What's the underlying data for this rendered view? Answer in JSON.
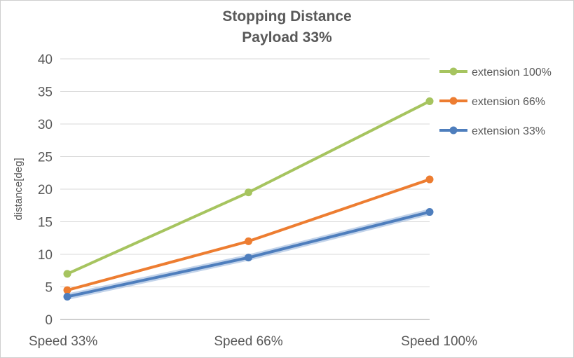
{
  "chart_data": {
    "type": "line",
    "title": "Stopping Distance",
    "subtitle": "Payload 33%",
    "categories": [
      "Speed 33%",
      "Speed 66%",
      "Speed 100%"
    ],
    "series": [
      {
        "name": "extension 100%",
        "values": [
          7,
          19.5,
          33.5
        ],
        "color": "#A6C45F"
      },
      {
        "name": "extension 66%",
        "values": [
          4.5,
          12,
          21.5
        ],
        "color": "#ED7D31"
      },
      {
        "name": "extension 33%",
        "values": [
          3.5,
          9.5,
          16.5
        ],
        "color": "#4E7EBD",
        "halo_color": "#8FAFD9"
      }
    ],
    "ylabel": "distance[deg]",
    "ylim": [
      0,
      40
    ],
    "ytick_step": 5,
    "grid": true,
    "legend_position": "right",
    "colors": {
      "axis_text": "#595959",
      "gridline": "#d9d9d9",
      "axis_line": "#bfbfbf"
    }
  }
}
